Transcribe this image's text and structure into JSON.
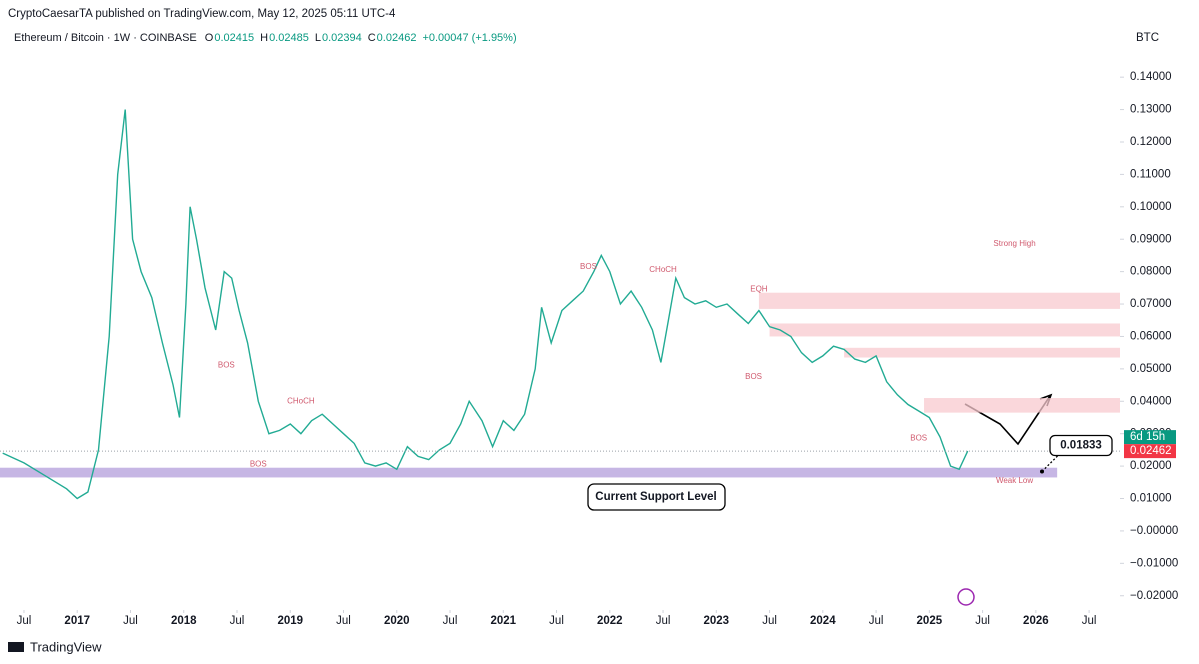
{
  "header": {
    "publisher": "CryptoCaesarTA published on TradingView.com, May 12, 2025 05:11 UTC-4",
    "symbol": "Ethereum / Bitcoin · 1W · COINBASE",
    "o": "O",
    "ov": "0.02415",
    "h": "H",
    "hv": "0.02485",
    "l": "L",
    "lv": "0.02394",
    "c": "C",
    "cv": "0.02462",
    "change": "+0.00047 (+1.95%)",
    "currency": "BTC"
  },
  "footer": {
    "brand": "TradingView"
  },
  "chart_data": {
    "type": "line",
    "color": "#22ab94",
    "x": [
      2016.3,
      2016.5,
      2016.7,
      2016.9,
      2017.0,
      2017.1,
      2017.2,
      2017.3,
      2017.38,
      2017.45,
      2017.52,
      2017.6,
      2017.7,
      2017.8,
      2017.9,
      2017.96,
      2018.02,
      2018.06,
      2018.12,
      2018.2,
      2018.3,
      2018.38,
      2018.45,
      2018.52,
      2018.6,
      2018.7,
      2018.8,
      2018.9,
      2019.0,
      2019.1,
      2019.2,
      2019.3,
      2019.4,
      2019.5,
      2019.6,
      2019.7,
      2019.8,
      2019.9,
      2020.0,
      2020.1,
      2020.2,
      2020.3,
      2020.4,
      2020.5,
      2020.6,
      2020.68,
      2020.8,
      2020.9,
      2021.0,
      2021.1,
      2021.2,
      2021.3,
      2021.36,
      2021.45,
      2021.55,
      2021.65,
      2021.75,
      2021.85,
      2021.92,
      2022.0,
      2022.1,
      2022.2,
      2022.3,
      2022.4,
      2022.48,
      2022.55,
      2022.62,
      2022.7,
      2022.8,
      2022.9,
      2023.0,
      2023.1,
      2023.2,
      2023.3,
      2023.4,
      2023.5,
      2023.6,
      2023.7,
      2023.8,
      2023.9,
      2024.0,
      2024.1,
      2024.2,
      2024.3,
      2024.4,
      2024.5,
      2024.6,
      2024.7,
      2024.8,
      2024.9,
      2025.0,
      2025.1,
      2025.2,
      2025.28,
      2025.36
    ],
    "values": [
      0.024,
      0.021,
      0.017,
      0.013,
      0.01,
      0.012,
      0.025,
      0.06,
      0.11,
      0.13,
      0.09,
      0.08,
      0.072,
      0.058,
      0.045,
      0.035,
      0.07,
      0.1,
      0.09,
      0.075,
      0.062,
      0.08,
      0.078,
      0.068,
      0.058,
      0.04,
      0.03,
      0.031,
      0.033,
      0.03,
      0.034,
      0.036,
      0.033,
      0.03,
      0.027,
      0.021,
      0.02,
      0.021,
      0.019,
      0.026,
      0.023,
      0.022,
      0.025,
      0.027,
      0.033,
      0.04,
      0.034,
      0.026,
      0.034,
      0.031,
      0.036,
      0.05,
      0.069,
      0.058,
      0.068,
      0.071,
      0.074,
      0.08,
      0.085,
      0.08,
      0.07,
      0.074,
      0.069,
      0.062,
      0.052,
      0.065,
      0.078,
      0.072,
      0.07,
      0.071,
      0.069,
      0.07,
      0.067,
      0.064,
      0.068,
      0.063,
      0.062,
      0.06,
      0.055,
      0.052,
      0.054,
      0.057,
      0.056,
      0.053,
      0.052,
      0.054,
      0.046,
      0.042,
      0.039,
      0.037,
      0.035,
      0.029,
      0.02,
      0.019,
      0.02462
    ],
    "xlim": [
      2016.275,
      2026.79
    ],
    "ylim": [
      -0.0244,
      0.149
    ],
    "xticks": [
      {
        "value": 2016.5,
        "label": "Jul"
      },
      2017,
      {
        "value": 2017.5,
        "label": "Jul"
      },
      2018,
      {
        "value": 2018.5,
        "label": "Jul"
      },
      2019,
      {
        "value": 2019.5,
        "label": "Jul"
      },
      2020,
      {
        "value": 2020.5,
        "label": "Jul"
      },
      2021,
      {
        "value": 2021.5,
        "label": "Jul"
      },
      2022,
      {
        "value": 2022.5,
        "label": "Jul"
      },
      2023,
      {
        "value": 2023.5,
        "label": "Jul"
      },
      2024,
      {
        "value": 2024.5,
        "label": "Jul"
      },
      2025,
      {
        "value": 2025.5,
        "label": "Jul"
      },
      2026,
      {
        "value": 2026.5,
        "label": "Jul"
      }
    ],
    "yticks": [
      {
        "value": 0.14,
        "label": "0.14000"
      },
      {
        "value": 0.13,
        "label": "0.13000"
      },
      {
        "value": 0.12,
        "label": "0.12000"
      },
      {
        "value": 0.11,
        "label": "0.11000"
      },
      {
        "value": 0.1,
        "label": "0.10000"
      },
      {
        "value": 0.09,
        "label": "0.09000"
      },
      {
        "value": 0.08,
        "label": "0.08000"
      },
      {
        "value": 0.07,
        "label": "0.07000"
      },
      {
        "value": 0.06,
        "label": "0.06000"
      },
      {
        "value": 0.05,
        "label": "0.05000"
      },
      {
        "value": 0.04,
        "label": "0.04000"
      },
      {
        "value": 0.03,
        "label": "0.03000"
      },
      {
        "value": 0.02,
        "label": "0.02000"
      },
      {
        "value": 0.01,
        "label": "0.01000"
      },
      {
        "value": 0,
        "label": "−0.00000"
      },
      {
        "value": -0.01,
        "label": "−0.01000"
      },
      {
        "value": -0.02,
        "label": "−0.02000"
      }
    ],
    "last_price": {
      "value": 0.02462,
      "label": "0.02462",
      "countdown": "6d 15h"
    },
    "callout": {
      "value": 0.01833,
      "label": "0.01833"
    },
    "support": {
      "label": "Current Support Level",
      "y": [
        0.0165,
        0.0195
      ],
      "x": [
        2016.275,
        2026.2
      ]
    },
    "zones": [
      {
        "y": [
          0.0685,
          0.0735
        ],
        "x": [
          2023.4,
          2026.79
        ]
      },
      {
        "y": [
          0.06,
          0.064
        ],
        "x": [
          2023.5,
          2026.79
        ]
      },
      {
        "y": [
          0.0535,
          0.0565
        ],
        "x": [
          2024.2,
          2026.79
        ]
      },
      {
        "y": [
          0.0365,
          0.041
        ],
        "x": [
          2024.95,
          2026.79
        ]
      }
    ],
    "annotations": [
      {
        "text": "Strong High",
        "x": 2025.8,
        "y": 0.0885
      },
      {
        "text": "Weak Low",
        "x": 2025.8,
        "y": 0.0155
      },
      {
        "text": "BOS",
        "x": 2018.7,
        "y": 0.0205
      },
      {
        "text": "BOS",
        "x": 2023.35,
        "y": 0.0475
      },
      {
        "text": "BOS",
        "x": 2018.4,
        "y": 0.051
      },
      {
        "text": "CHoCH",
        "x": 2019.1,
        "y": 0.04
      },
      {
        "text": "BOS",
        "x": 2021.8,
        "y": 0.0815
      },
      {
        "text": "CHoCH",
        "x": 2022.5,
        "y": 0.0805
      },
      {
        "text": "EQH",
        "x": 2023.4,
        "y": 0.0745
      },
      {
        "text": "BOS",
        "x": 2024.9,
        "y": 0.0285
      }
    ]
  }
}
